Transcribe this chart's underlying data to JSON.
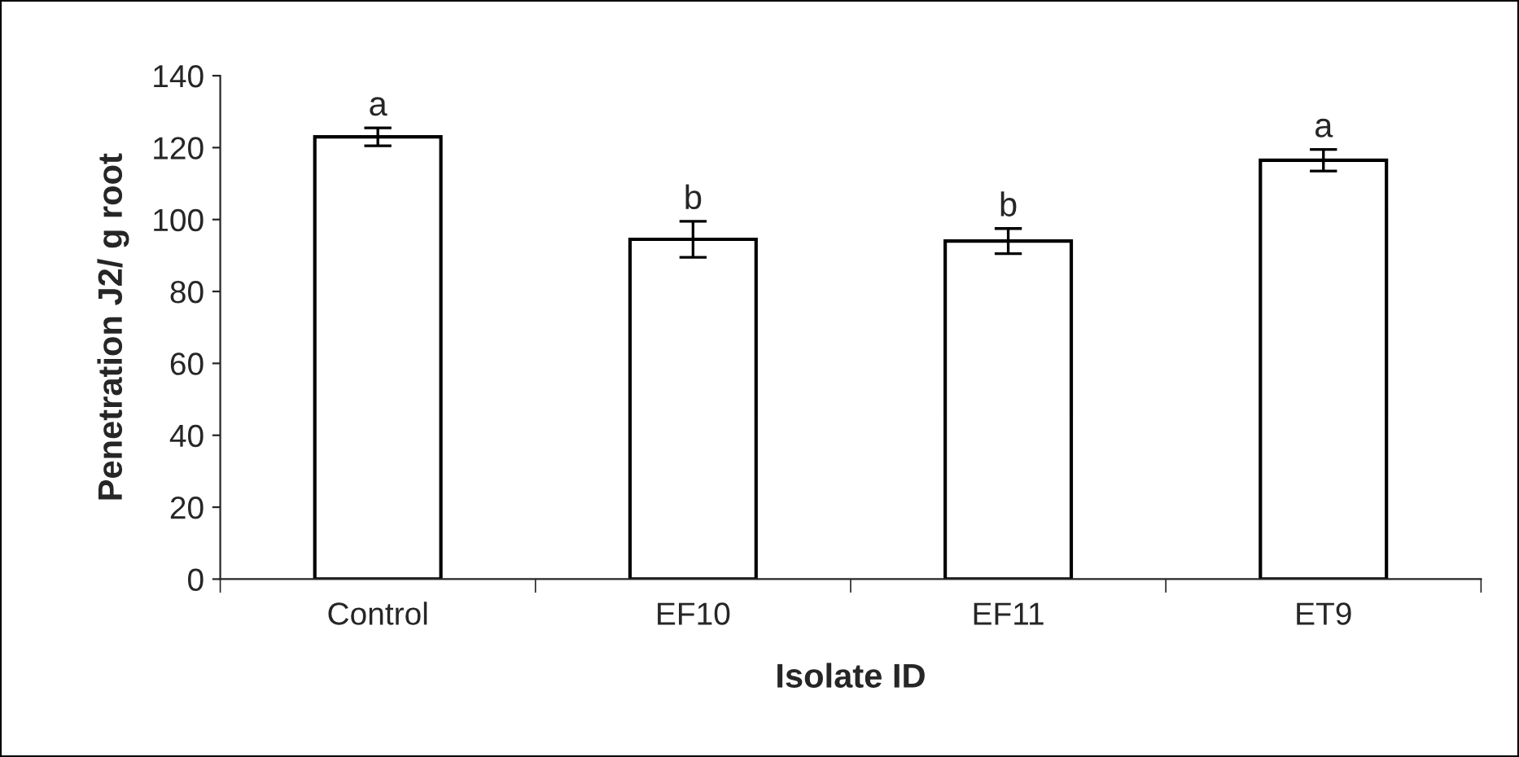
{
  "chart_data": {
    "type": "bar",
    "xlabel": "Isolate ID",
    "ylabel": "Penetration J2/ g root",
    "categories": [
      "Control",
      "EF10",
      "EF11",
      "ET9"
    ],
    "values": [
      123,
      94.5,
      94,
      116.5
    ],
    "errors": [
      2.5,
      5,
      3.5,
      3
    ],
    "color": "#ffffff",
    "ylim": [
      0,
      140
    ],
    "yticks": [
      0,
      20,
      40,
      60,
      80,
      100,
      120,
      140
    ],
    "annotations": [
      {
        "text": "a",
        "x": "Control",
        "y": 127
      },
      {
        "text": "b",
        "x": "EF10",
        "y": 101
      },
      {
        "text": "b",
        "x": "EF11",
        "y": 99
      },
      {
        "text": "a",
        "x": "ET9",
        "y": 121
      }
    ],
    "grid": false,
    "legend": false
  }
}
